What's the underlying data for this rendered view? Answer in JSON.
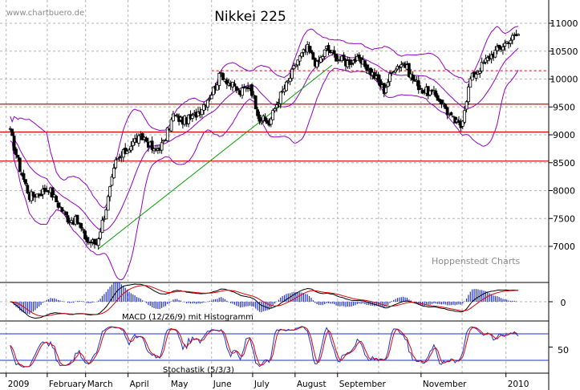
{
  "chart_data": {
    "type": "candlestick",
    "title": "Nikkei 225",
    "watermark_top": "www.chartbuero.de",
    "watermark_bottom": "Hoppenstedt Charts",
    "x_labels": [
      "2009",
      "February",
      "March",
      "April",
      "May",
      "June",
      "July",
      "August",
      "September",
      "November",
      "2010"
    ],
    "y_ticks": [
      7000,
      7500,
      8000,
      8500,
      9000,
      9500,
      10000,
      10500,
      11000
    ],
    "ylim": [
      6500,
      11300
    ],
    "horizontal_levels": [
      9550,
      9050,
      8530
    ],
    "dashed_level": 10150,
    "trendline": {
      "from": [
        "2009-03-10",
        6950
      ],
      "to": [
        "2009-08-28",
        10250
      ]
    },
    "price_series": {
      "name": "Nikkei 225",
      "points": [
        [
          "2009-01-05",
          9050
        ],
        [
          "2009-01-12",
          8400
        ],
        [
          "2009-01-19",
          7900
        ],
        [
          "2009-01-26",
          7950
        ],
        [
          "2009-02-02",
          8050
        ],
        [
          "2009-02-09",
          7750
        ],
        [
          "2009-02-16",
          7500
        ],
        [
          "2009-02-23",
          7450
        ],
        [
          "2009-03-02",
          7100
        ],
        [
          "2009-03-09",
          7050
        ],
        [
          "2009-03-16",
          7700
        ],
        [
          "2009-03-23",
          8500
        ],
        [
          "2009-03-30",
          8700
        ],
        [
          "2009-04-06",
          8900
        ],
        [
          "2009-04-13",
          8950
        ],
        [
          "2009-04-20",
          8700
        ],
        [
          "2009-04-27",
          8850
        ],
        [
          "2009-05-04",
          9350
        ],
        [
          "2009-05-11",
          9250
        ],
        [
          "2009-05-18",
          9300
        ],
        [
          "2009-05-25",
          9500
        ],
        [
          "2009-06-01",
          9750
        ],
        [
          "2009-06-08",
          10100
        ],
        [
          "2009-06-15",
          9900
        ],
        [
          "2009-06-22",
          9750
        ],
        [
          "2009-06-29",
          9900
        ],
        [
          "2009-07-06",
          9300
        ],
        [
          "2009-07-13",
          9200
        ],
        [
          "2009-07-20",
          9650
        ],
        [
          "2009-07-27",
          9950
        ],
        [
          "2009-08-03",
          10350
        ],
        [
          "2009-08-10",
          10550
        ],
        [
          "2009-08-17",
          10250
        ],
        [
          "2009-08-24",
          10550
        ],
        [
          "2009-08-31",
          10400
        ],
        [
          "2009-09-07",
          10300
        ],
        [
          "2009-09-14",
          10350
        ],
        [
          "2009-09-21",
          10250
        ],
        [
          "2009-09-28",
          10050
        ],
        [
          "2009-10-05",
          9800
        ],
        [
          "2009-10-12",
          10200
        ],
        [
          "2009-10-19",
          10300
        ],
        [
          "2009-10-26",
          10000
        ],
        [
          "2009-11-02",
          9800
        ],
        [
          "2009-11-09",
          9750
        ],
        [
          "2009-11-16",
          9600
        ],
        [
          "2009-11-23",
          9300
        ],
        [
          "2009-11-30",
          9150
        ],
        [
          "2009-12-07",
          10000
        ],
        [
          "2009-12-14",
          10200
        ],
        [
          "2009-12-21",
          10400
        ],
        [
          "2009-12-28",
          10550
        ],
        [
          "2010-01-04",
          10700
        ],
        [
          "2010-01-11",
          10800
        ]
      ]
    },
    "macd": {
      "label": "MACD (12/26/9) mit Histogramm",
      "y_ticks": [
        0
      ]
    },
    "stochastic": {
      "label": "Stochastik (5/3/3)",
      "y_ticks": [
        50
      ],
      "levels": [
        80,
        20
      ]
    },
    "colors": {
      "candle": "#000000",
      "bollinger": "#9400c8",
      "support_lines": "#e00000",
      "trendline": "#00a000",
      "grid": "#b4b4b4",
      "macd_line": "#000000",
      "macd_signal": "#e00000",
      "histogram": "#2030d0",
      "stoch_k": "#2030d0",
      "stoch_d": "#e00000",
      "stoch_levels": "#2030d0"
    }
  }
}
